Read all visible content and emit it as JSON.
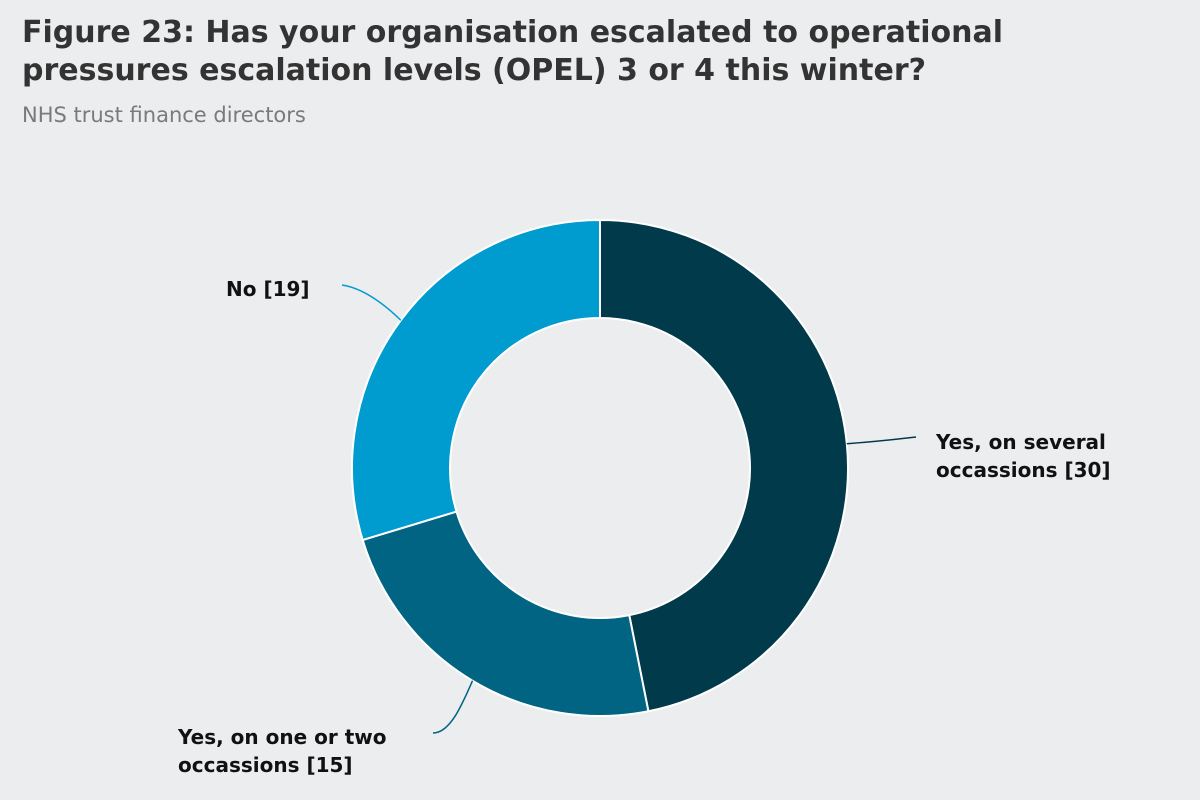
{
  "figure": {
    "title": "Figure 23: Has your organisation escalated to operational pressures escalation levels (OPEL) 3 or 4 this winter?",
    "subtitle": "NHS trust finance directors"
  },
  "chart_data": {
    "type": "pie",
    "donut": true,
    "slices": [
      {
        "name": "Yes, on several occassions",
        "value": 30,
        "label_line1": "Yes, on several",
        "label_line2": "occassions [30]",
        "color": "#003a4b"
      },
      {
        "name": "Yes, on one or two occassions",
        "value": 15,
        "label_line1": "Yes, on one or two",
        "label_line2": "occassions [15]",
        "color": "#006482"
      },
      {
        "name": "No",
        "value": 19,
        "label_line1": "No [19]",
        "label_line2": "",
        "color": "#009bcf"
      }
    ]
  }
}
